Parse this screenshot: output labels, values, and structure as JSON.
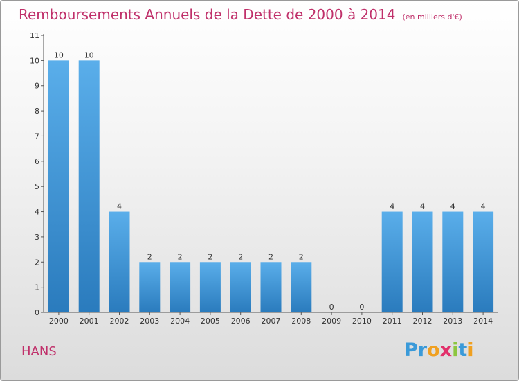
{
  "header": {
    "title": "Remboursements Annuels de la Dette de 2000 à 2014",
    "subtitle": "(en milliers d'€)"
  },
  "footer": {
    "commune": "HANS",
    "logo_text": "Proxiti",
    "logo_letters": [
      {
        "char": "P",
        "color": "#3a9ad9"
      },
      {
        "char": "r",
        "color": "#3a9ad9"
      },
      {
        "char": "o",
        "color": "#f0a020"
      },
      {
        "char": "x",
        "color": "#e2306a"
      },
      {
        "char": "i",
        "color": "#8cc63f"
      },
      {
        "char": "t",
        "color": "#3a9ad9"
      },
      {
        "char": "i",
        "color": "#f0a020"
      }
    ]
  },
  "colors": {
    "title": "#c0306a",
    "bar_top": "#5aaeea",
    "bar_bottom": "#2a7bbd"
  },
  "chart_data": {
    "type": "bar",
    "title": "Remboursements Annuels de la Dette de 2000 à 2014",
    "subtitle": "(en milliers d'€)",
    "xlabel": "",
    "ylabel": "",
    "categories": [
      "2000",
      "2001",
      "2002",
      "2003",
      "2004",
      "2005",
      "2006",
      "2007",
      "2008",
      "2009",
      "2010",
      "2011",
      "2012",
      "2013",
      "2014"
    ],
    "values": [
      10,
      10,
      4,
      2,
      2,
      2,
      2,
      2,
      2,
      0,
      0,
      4,
      4,
      4,
      4
    ],
    "data_labels": [
      "10",
      "10",
      "4",
      "2",
      "2",
      "2",
      "2",
      "2",
      "2",
      "0",
      "0",
      "4",
      "4",
      "4",
      "4"
    ],
    "ylim": [
      0,
      11
    ],
    "yticks": [
      0,
      1,
      2,
      3,
      4,
      5,
      6,
      7,
      8,
      9,
      10,
      11
    ],
    "grid": false,
    "legend": "none"
  }
}
